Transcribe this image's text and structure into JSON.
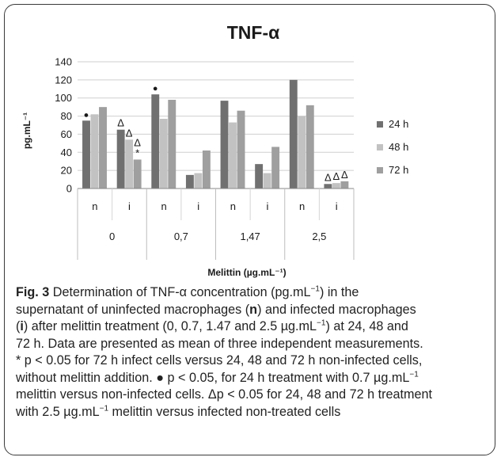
{
  "chart_data": {
    "type": "bar",
    "title": "TNF-α",
    "ylabel": "pg.mL⁻¹",
    "xlabel": "Melittin (µg.mL⁻¹)",
    "ylim": [
      0,
      140
    ],
    "yticks": [
      "0",
      "20",
      "40",
      "60",
      "80",
      "100",
      "120",
      "140"
    ],
    "ytick_values": [
      0,
      20,
      40,
      60,
      80,
      100,
      120,
      140
    ],
    "grid": "horizontal",
    "legend_position": "right",
    "categories": [
      "n",
      "i",
      "n",
      "i",
      "n",
      "i",
      "n",
      "i"
    ],
    "groups": [
      "0",
      "0,7",
      "1,47",
      "2,5"
    ],
    "series": [
      {
        "name": "24 h",
        "color": "#707070",
        "values": [
          75,
          65,
          104,
          15,
          97,
          27,
          120,
          5
        ]
      },
      {
        "name": "48 h",
        "color": "#c2c2c2",
        "values": [
          82,
          54,
          77,
          17,
          73,
          17,
          80,
          6
        ]
      },
      {
        "name": "72 h",
        "color": "#9f9f9f",
        "values": [
          90,
          32,
          98,
          42,
          86,
          46,
          92,
          8
        ]
      }
    ],
    "annotations": [
      {
        "text": "●",
        "category_index": 0,
        "series": 0
      },
      {
        "text": "Δ",
        "category_index": 1,
        "series": 0
      },
      {
        "text": "Δ",
        "category_index": 1,
        "series": 1
      },
      {
        "text": "Δ",
        "category_index": 1,
        "series": 2
      },
      {
        "text": "*",
        "category_index": 1,
        "series": 2
      },
      {
        "text": "●",
        "category_index": 2,
        "series": 0
      },
      {
        "text": "Δ",
        "category_index": 7,
        "series": 0
      },
      {
        "text": "Δ",
        "category_index": 7,
        "series": 1
      },
      {
        "text": "Δ",
        "category_index": 7,
        "series": 2
      }
    ]
  },
  "caption": {
    "fig_label": "Fig. 3",
    "line1_a": " Determination of TNF-α concentration (pg.mL",
    "line1_sup": "−1",
    "line1_b": ") in the",
    "line2_a": "supernatant of uninfected macrophages (",
    "line2_n": "n",
    "line2_b": ") and infected macrophages",
    "line3_a": "(",
    "line3_i": "i",
    "line3_b": ") after melittin treatment (0, 0.7, 1.47 and 2.5 µg.mL",
    "line3_sup": "−1",
    "line3_c": ") at 24, 48 and",
    "line4": "72 h. Data are presented as mean of three independent measurements.",
    "line5": "* p < 0.05 for 72 h infect cells versus 24, 48 and 72 h non-infected cells,",
    "line6_a": "without melittin addition. ● p < 0.05, for 24 h treatment with 0.7 µg.mL",
    "line6_sup": "−1",
    "line7": "melittin versus non-infected cells. Δp < 0.05 for 24, 48 and 72 h treatment",
    "line8_a": "with 2.5 µg.mL",
    "line8_sup": "−1",
    "line8_b": " melittin versus infected non-treated cells"
  }
}
